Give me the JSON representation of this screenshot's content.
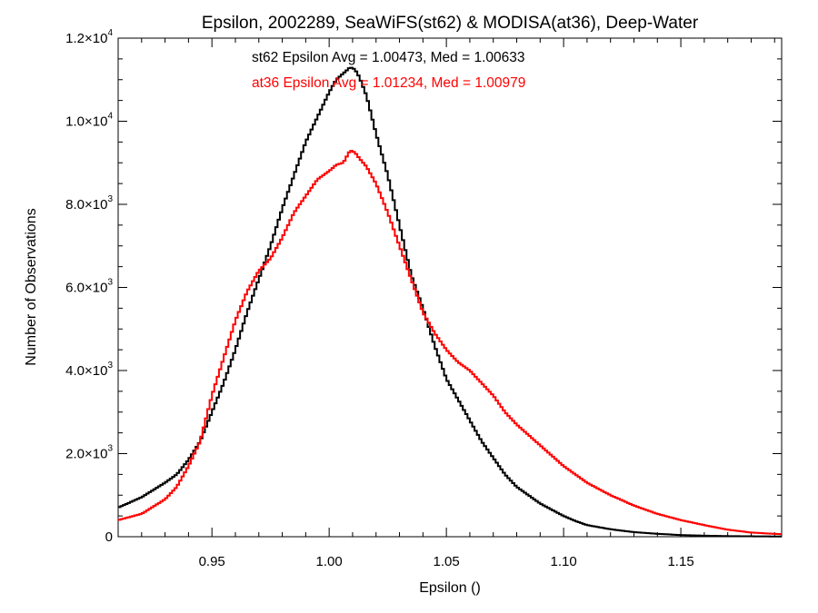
{
  "chart_data": {
    "type": "line",
    "step": true,
    "title": "Epsilon, 2002289, SeaWiFS(st62) & MODISA(at36), Deep-Water",
    "xlabel": "Epsilon ()",
    "ylabel": "Number of Observations",
    "xlim": [
      0.91,
      1.193
    ],
    "ylim": [
      0,
      12000
    ],
    "x_ticks": [
      {
        "value": 0.95,
        "label": "0.95"
      },
      {
        "value": 1.0,
        "label": "1.00"
      },
      {
        "value": 1.05,
        "label": "1.05"
      },
      {
        "value": 1.1,
        "label": "1.10"
      },
      {
        "value": 1.15,
        "label": "1.15"
      }
    ],
    "y_ticks": [
      {
        "value": 0,
        "mant": "0",
        "exp": ""
      },
      {
        "value": 2000,
        "mant": "2.0×10",
        "exp": "3"
      },
      {
        "value": 4000,
        "mant": "4.0×10",
        "exp": "3"
      },
      {
        "value": 6000,
        "mant": "6.0×10",
        "exp": "3"
      },
      {
        "value": 8000,
        "mant": "8.0×10",
        "exp": "3"
      },
      {
        "value": 10000,
        "mant": "1.0×10",
        "exp": "4"
      },
      {
        "value": 12000,
        "mant": "1.2×10",
        "exp": "4"
      }
    ],
    "grid": false,
    "annotations": [
      {
        "text": "st62 Epsilon Avg = 1.00473, Med = 1.00633",
        "color": "#000000"
      },
      {
        "text": "at36 Epsilon Avg = 1.01234, Med = 1.00979",
        "color": "#ff0000"
      }
    ],
    "series": [
      {
        "color": "#000000",
        "x": [
          0.91,
          0.92,
          0.93,
          0.935,
          0.94,
          0.945,
          0.95,
          0.955,
          0.96,
          0.965,
          0.97,
          0.975,
          0.98,
          0.985,
          0.99,
          0.995,
          1.0,
          1.003,
          1.006,
          1.009,
          1.011,
          1.013,
          1.016,
          1.02,
          1.025,
          1.03,
          1.035,
          1.04,
          1.045,
          1.05,
          1.055,
          1.06,
          1.065,
          1.07,
          1.075,
          1.08,
          1.085,
          1.09,
          1.095,
          1.1,
          1.105,
          1.11,
          1.12,
          1.13,
          1.14,
          1.15,
          1.16,
          1.17,
          1.18,
          1.193
        ],
        "y": [
          700,
          950,
          1300,
          1500,
          1850,
          2300,
          3000,
          3700,
          4500,
          5400,
          6200,
          7000,
          7900,
          8700,
          9500,
          10100,
          10700,
          11000,
          11150,
          11300,
          11250,
          11050,
          10600,
          9700,
          8700,
          7500,
          6300,
          5500,
          4600,
          3800,
          3300,
          2800,
          2300,
          1900,
          1500,
          1200,
          1000,
          800,
          650,
          500,
          380,
          280,
          180,
          110,
          70,
          40,
          25,
          15,
          10,
          5
        ]
      },
      {
        "color": "#ff0000",
        "x": [
          0.91,
          0.92,
          0.93,
          0.935,
          0.94,
          0.945,
          0.95,
          0.955,
          0.96,
          0.965,
          0.97,
          0.975,
          0.98,
          0.985,
          0.99,
          0.995,
          1.0,
          1.003,
          1.006,
          1.009,
          1.011,
          1.013,
          1.016,
          1.02,
          1.025,
          1.03,
          1.035,
          1.04,
          1.045,
          1.05,
          1.055,
          1.06,
          1.065,
          1.07,
          1.075,
          1.08,
          1.085,
          1.09,
          1.095,
          1.1,
          1.105,
          1.11,
          1.12,
          1.13,
          1.14,
          1.15,
          1.16,
          1.17,
          1.18,
          1.193
        ],
        "y": [
          400,
          550,
          900,
          1200,
          1700,
          2300,
          3400,
          4300,
          5200,
          5900,
          6400,
          6700,
          7200,
          7800,
          8200,
          8600,
          8800,
          8950,
          9000,
          9300,
          9250,
          9100,
          8900,
          8500,
          7800,
          7000,
          6200,
          5400,
          4900,
          4500,
          4200,
          4000,
          3700,
          3400,
          3000,
          2700,
          2450,
          2200,
          1950,
          1700,
          1500,
          1300,
          1000,
          750,
          550,
          400,
          280,
          170,
          100,
          60
        ]
      }
    ]
  }
}
